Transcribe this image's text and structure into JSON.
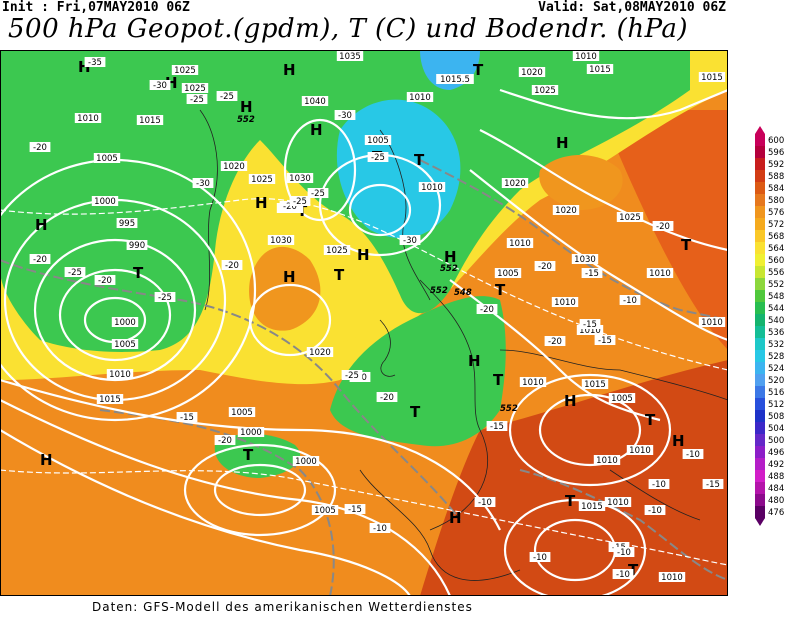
{
  "header": {
    "init": "Init : Fri,07MAY2010 06Z",
    "valid": "Valid: Sat,08MAY2010 06Z",
    "title": "500 hPa Geopot.(gpdm), T (C) und Bodendr. (hPa)"
  },
  "footer": {
    "credits": "Daten: GFS-Modell des amerikanischen Wetterdienstes"
  },
  "legend": {
    "values": [
      600,
      596,
      592,
      588,
      584,
      580,
      576,
      572,
      568,
      564,
      560,
      556,
      552,
      548,
      544,
      540,
      536,
      532,
      528,
      524,
      520,
      516,
      512,
      508,
      504,
      500,
      496,
      492,
      488,
      484,
      480,
      476
    ],
    "colors": [
      "#c8005a",
      "#b4003c",
      "#c81e1e",
      "#d23c14",
      "#dc5a14",
      "#e6781e",
      "#f0961e",
      "#f5aa1e",
      "#fac828",
      "#fae132",
      "#f0f032",
      "#c8e632",
      "#8cd73c",
      "#50c83c",
      "#28be50",
      "#14b46e",
      "#14be96",
      "#1ec8c8",
      "#28c8e6",
      "#3cb4f0",
      "#50a0f0",
      "#3c78e6",
      "#2850dc",
      "#1e32c8",
      "#3c28c8",
      "#6428c8",
      "#8c1ec8",
      "#b41ec8",
      "#d21ec8",
      "#b414aa",
      "#8c0a8c",
      "#5a0064"
    ]
  },
  "map": {
    "colors": {
      "ocean_orange": "#f08c1e",
      "deep_red": "#c83214",
      "yellow": "#fae132",
      "green": "#3cc850",
      "cyan": "#28c8e6",
      "contour": "#ffffff"
    },
    "pressure_centers": [
      {
        "label": "H"
      },
      {
        "label": "H"
      },
      {
        "label": "H"
      },
      {
        "label": "H"
      },
      {
        "label": "H"
      },
      {
        "label": "H"
      },
      {
        "label": "H"
      },
      {
        "label": "H"
      },
      {
        "label": "H"
      },
      {
        "label": "H"
      },
      {
        "label": "H"
      },
      {
        "label": "H"
      },
      {
        "label": "H"
      },
      {
        "label": "H"
      },
      {
        "label": "H"
      },
      {
        "label": "H"
      },
      {
        "label": "T"
      },
      {
        "label": "T"
      },
      {
        "label": "T"
      },
      {
        "label": "T"
      },
      {
        "label": "T"
      },
      {
        "label": "T"
      },
      {
        "label": "T"
      },
      {
        "label": "T"
      },
      {
        "label": "T"
      },
      {
        "label": "T"
      },
      {
        "label": "T"
      },
      {
        "label": "T"
      },
      {
        "label": "T"
      },
      {
        "label": "T"
      }
    ],
    "isobar_labels": [
      "1025",
      "1035",
      "1025",
      "1040",
      "1015.5",
      "1020",
      "1010",
      "1015",
      "1025",
      "1020",
      "1010",
      "1015",
      "1005",
      "1005",
      "1010",
      "1010",
      "1020",
      "1030",
      "1025",
      "1025",
      "1000",
      "995",
      "990",
      "1030",
      "1025",
      "1020",
      "1000",
      "1005",
      "1010",
      "1015",
      "1020",
      "1025",
      "1030",
      "1005",
      "1010",
      "1015",
      "1010",
      "1005",
      "1010",
      "1005",
      "1000",
      "1000",
      "1010",
      "1005",
      "1010",
      "1010",
      "1010",
      "1015",
      "1010",
      "1010",
      "1015",
      "1010"
    ],
    "temp_labels": [
      "-35",
      "-30",
      "-25",
      "-25",
      "-20",
      "-30",
      "-20",
      "-25",
      "-30",
      "-25",
      "-20",
      "-25",
      "-30",
      "-25",
      "-20",
      "-25",
      "-20",
      "-20",
      "-15",
      "-25",
      "-20",
      "-20",
      "-15",
      "-20",
      "-15",
      "-20",
      "-15",
      "-10",
      "-15",
      "-20",
      "-10",
      "-10",
      "-15",
      "-10",
      "-15",
      "-10",
      "-10",
      "-10",
      "-10",
      "-10",
      "-15",
      "-20"
    ],
    "geopot_labels": [
      "552",
      "552",
      "548",
      "552",
      "552"
    ]
  }
}
